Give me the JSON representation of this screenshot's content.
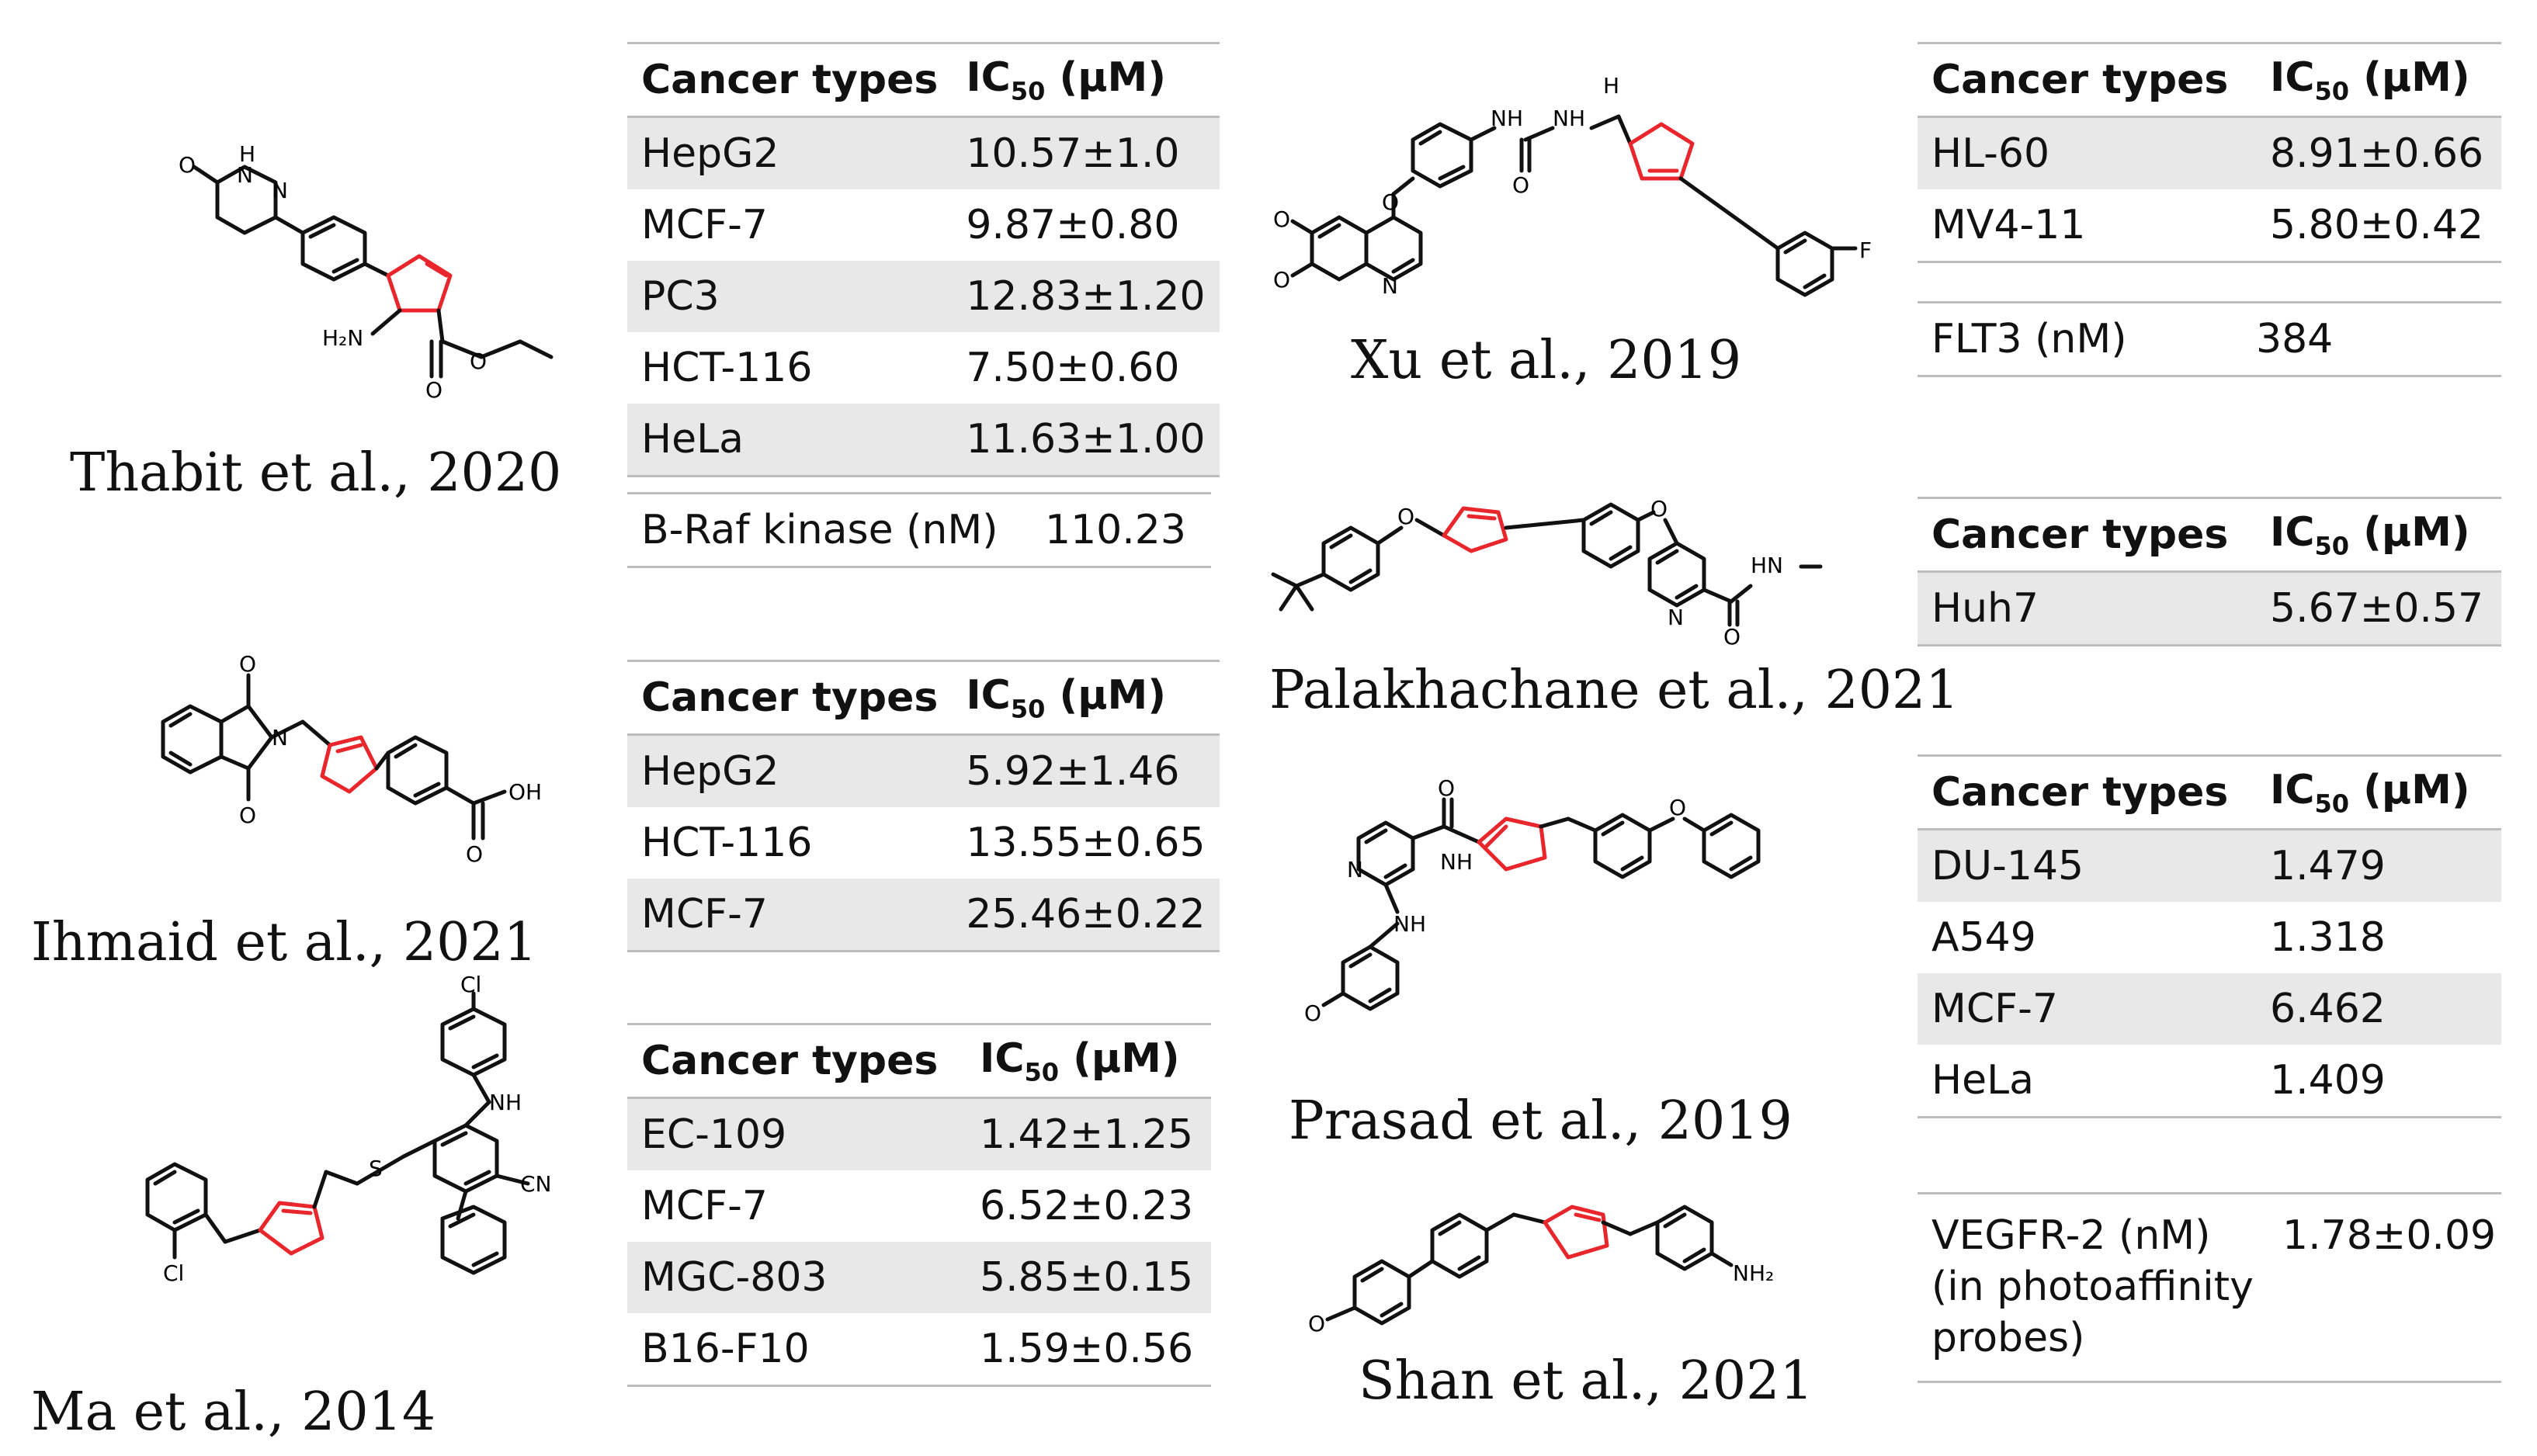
{
  "citations": {
    "thabit": "Thabit et al., 2020",
    "ihmaid": "Ihmaid et al., 2021",
    "ma": "Ma et al., 2014",
    "xu": "Xu et al., 2019",
    "palakhachane": "Palakhachane et al., 2021",
    "prasad": "Prasad et al., 2019",
    "shan": "Shan et al., 2021"
  },
  "header": {
    "col1": "Cancer types",
    "col2_prefix": "IC",
    "col2_sub": "50",
    "col2_suffix": " (µM)"
  },
  "tables": {
    "thabit": [
      [
        "HepG2",
        "10.57±1.0"
      ],
      [
        "MCF-7",
        "9.87±0.80"
      ],
      [
        "PC3",
        "12.83±1.20"
      ],
      [
        "HCT-116",
        "7.50±0.60"
      ],
      [
        "HeLa",
        "11.63±1.00"
      ]
    ],
    "ihmaid": [
      [
        "HepG2",
        "5.92±1.46"
      ],
      [
        "HCT-116",
        "13.55±0.65"
      ],
      [
        "MCF-7",
        "25.46±0.22"
      ]
    ],
    "ma": [
      [
        "EC-109",
        "1.42±1.25"
      ],
      [
        "MCF-7",
        "6.52±0.23"
      ],
      [
        "MGC-803",
        "5.85±0.15"
      ],
      [
        "B16-F10",
        "1.59±0.56"
      ]
    ],
    "xu": [
      [
        "HL-60",
        "8.91±0.66"
      ],
      [
        "MV4-11",
        "5.80±0.42"
      ]
    ],
    "palakhachane": [
      [
        "Huh7",
        "5.67±0.57"
      ]
    ],
    "prasad": [
      [
        "DU-145",
        "1.479"
      ],
      [
        "A549",
        "1.318"
      ],
      [
        "MCF-7",
        "6.462"
      ],
      [
        "HeLa",
        "1.409"
      ]
    ]
  },
  "extras": {
    "braf_label": "B-Raf kinase  (nM)",
    "braf_value": "110.23",
    "flt3_label": "FLT3 (nM)",
    "flt3_value": "384",
    "vegfr_label_1": "VEGFR-2 (nM)",
    "vegfr_label_2": "(in photoaffinity",
    "vegfr_label_3": "probes)",
    "vegfr_value": "1.78±0.09"
  },
  "atoms": {
    "O": "O",
    "H": "H",
    "N": "N",
    "NH": "NH",
    "HN": "HN",
    "H2N": "H₂N",
    "NH2": "NH₂",
    "OH": "OH",
    "Cl": "Cl",
    "F": "F",
    "S": "S",
    "CN": "CN"
  },
  "colors": {
    "triazole": "#e8262b",
    "bond": "#111111",
    "rule": "#bdbdbd",
    "shade": "#e8e8e8"
  }
}
